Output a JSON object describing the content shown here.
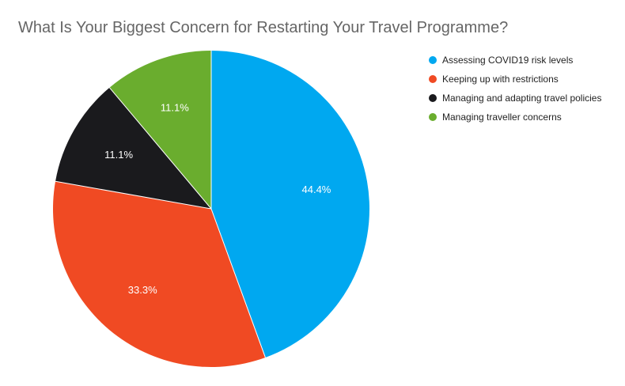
{
  "chart_data": {
    "type": "pie",
    "title": "What Is Your Biggest Concern for Restarting Your Travel Programme?",
    "slices": [
      {
        "label": "Assessing COVID19 risk levels",
        "value": 44.4,
        "display": "44.4%",
        "color": "#00a8f0"
      },
      {
        "label": "Keeping up with restrictions",
        "value": 33.3,
        "display": "33.3%",
        "color": "#f04a23"
      },
      {
        "label": "Managing and adapting travel policies",
        "value": 11.1,
        "display": "11.1%",
        "color": "#1a1a1d"
      },
      {
        "label": "Managing traveller concerns",
        "value": 11.1,
        "display": "11.1%",
        "color": "#6aad2e"
      }
    ],
    "legend_position": "right"
  }
}
